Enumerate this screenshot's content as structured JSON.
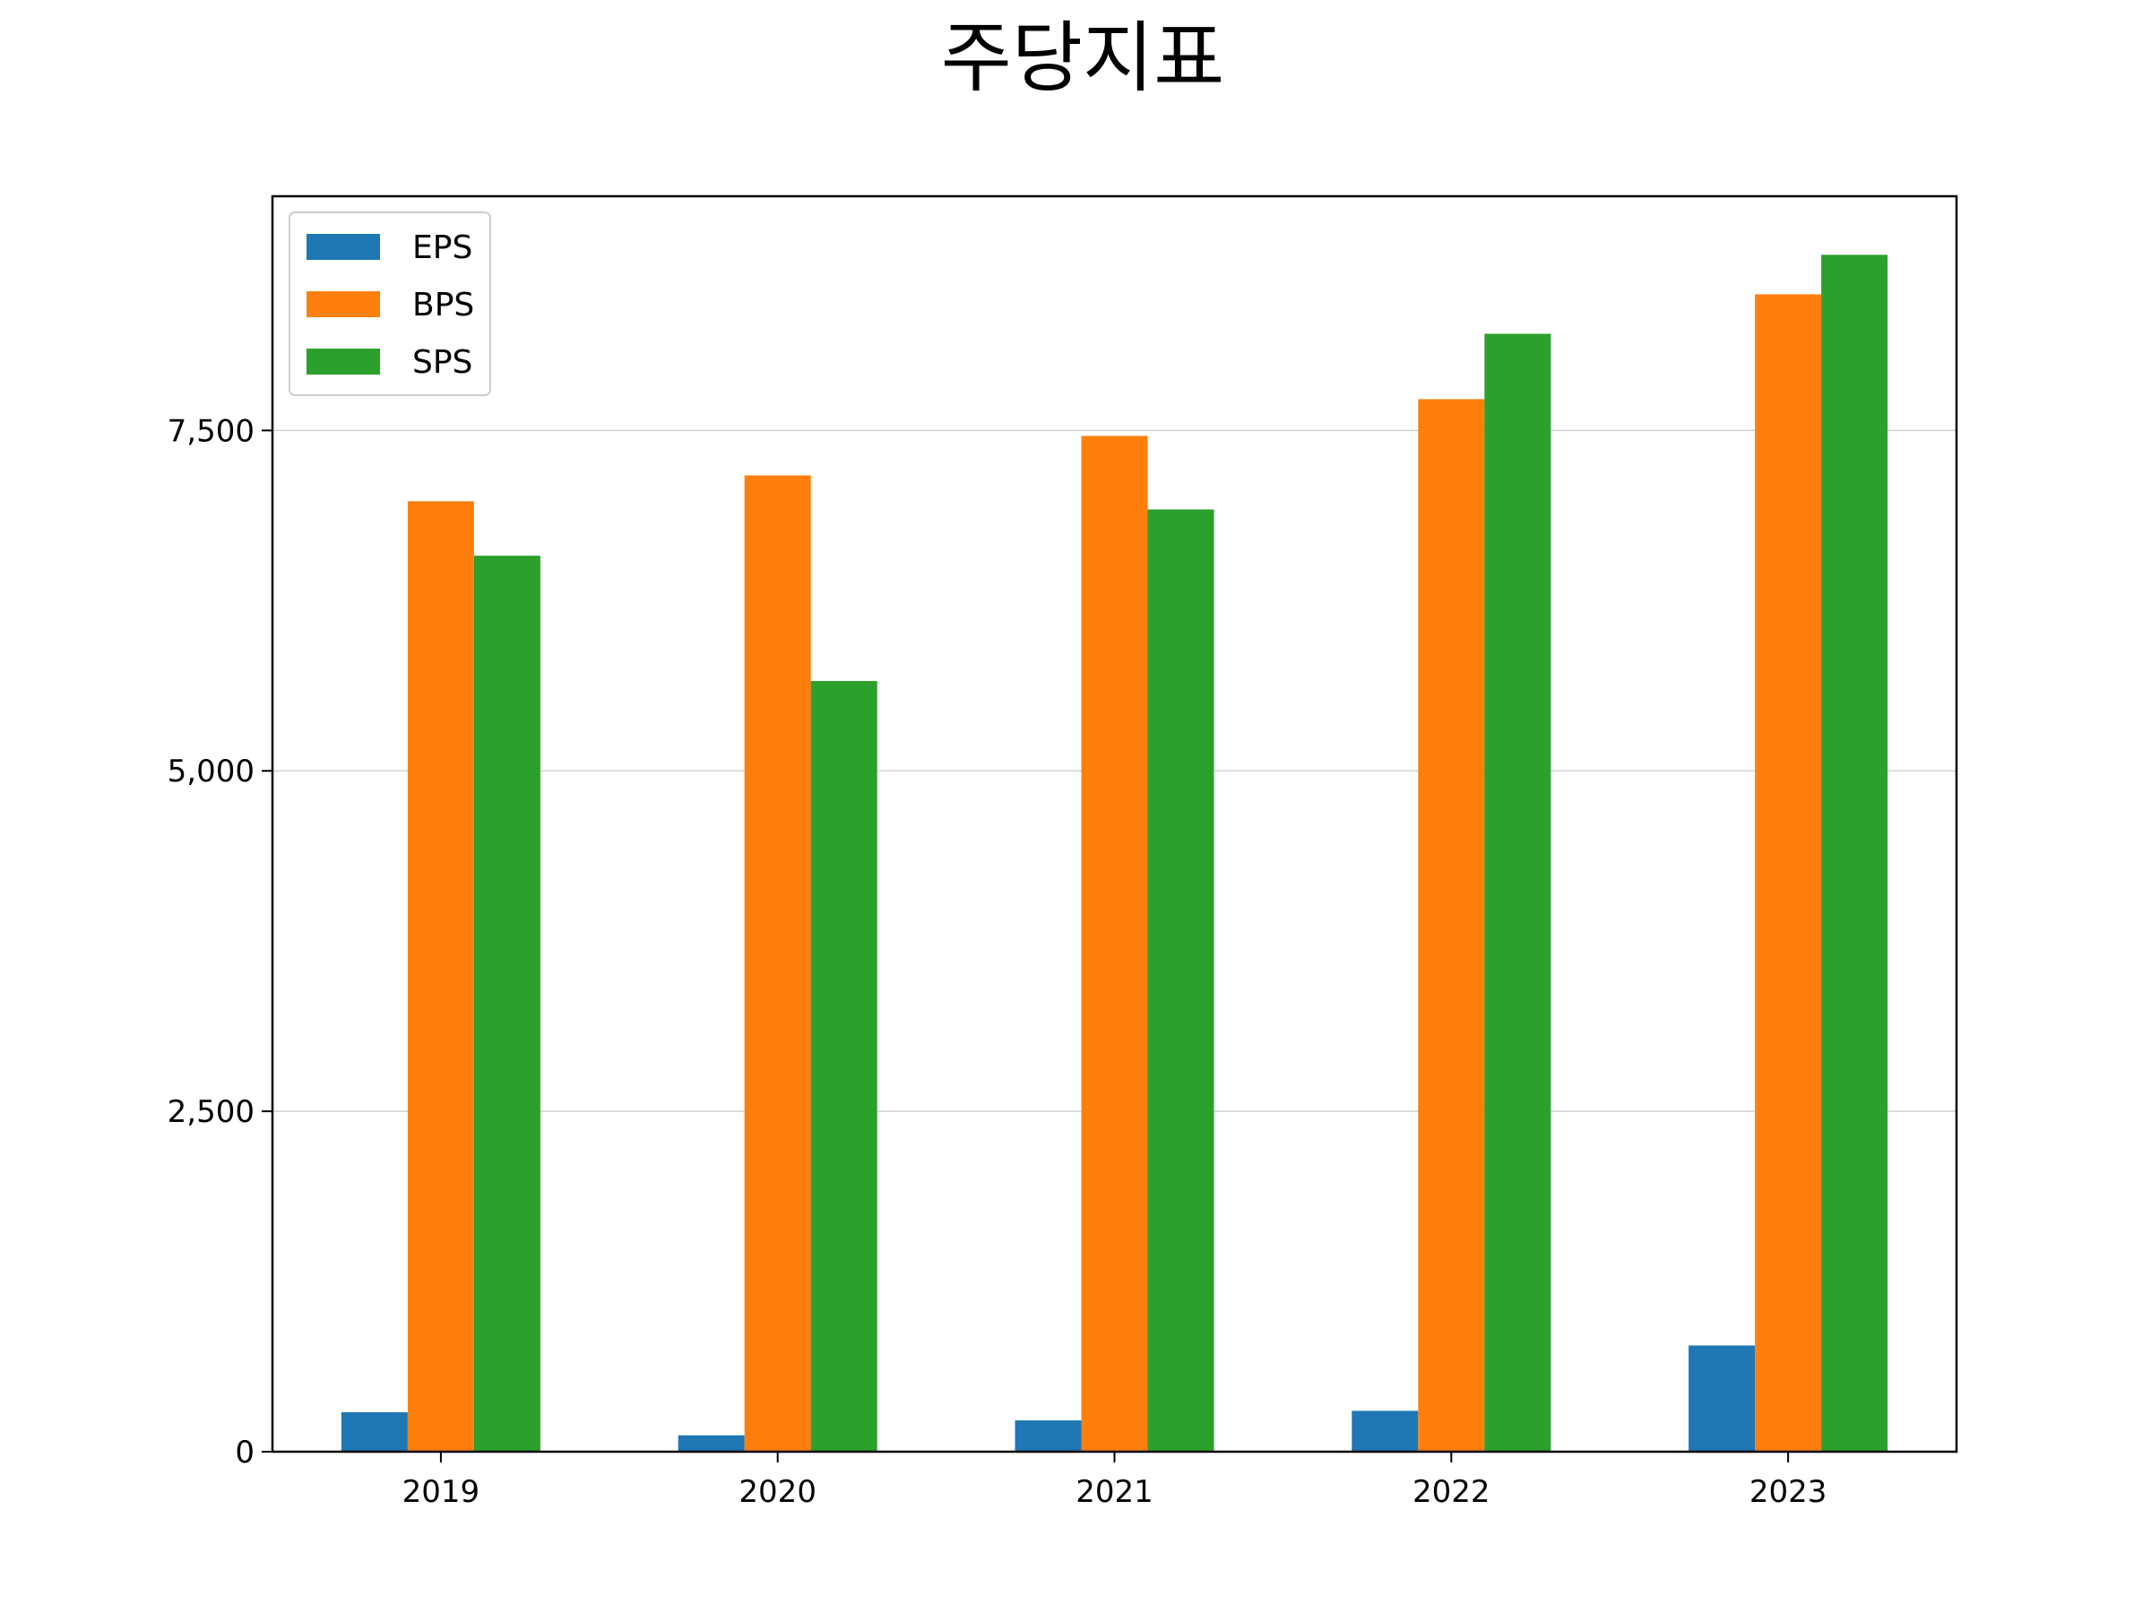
{
  "chart_data": {
    "type": "bar",
    "title": "주당지표",
    "xlabel": "",
    "ylabel": "",
    "categories": [
      "2019",
      "2020",
      "2021",
      "2022",
      "2023"
    ],
    "series": [
      {
        "name": "EPS",
        "color": "#1f77b4",
        "values": [
          290,
          120,
          230,
          300,
          780
        ]
      },
      {
        "name": "BPS",
        "color": "#ff7f0e",
        "values": [
          6980,
          7170,
          7460,
          7730,
          8500
        ]
      },
      {
        "name": "SPS",
        "color": "#2ca02c",
        "values": [
          6580,
          5660,
          6920,
          8210,
          8790
        ]
      }
    ],
    "ylim": [
      0,
      9220
    ],
    "yticks": [
      0,
      2500,
      5000,
      7500
    ],
    "ytick_labels": [
      "0",
      "2,500",
      "5,000",
      "7,500"
    ],
    "grid": "horizontal",
    "legend_position": "top-left"
  }
}
